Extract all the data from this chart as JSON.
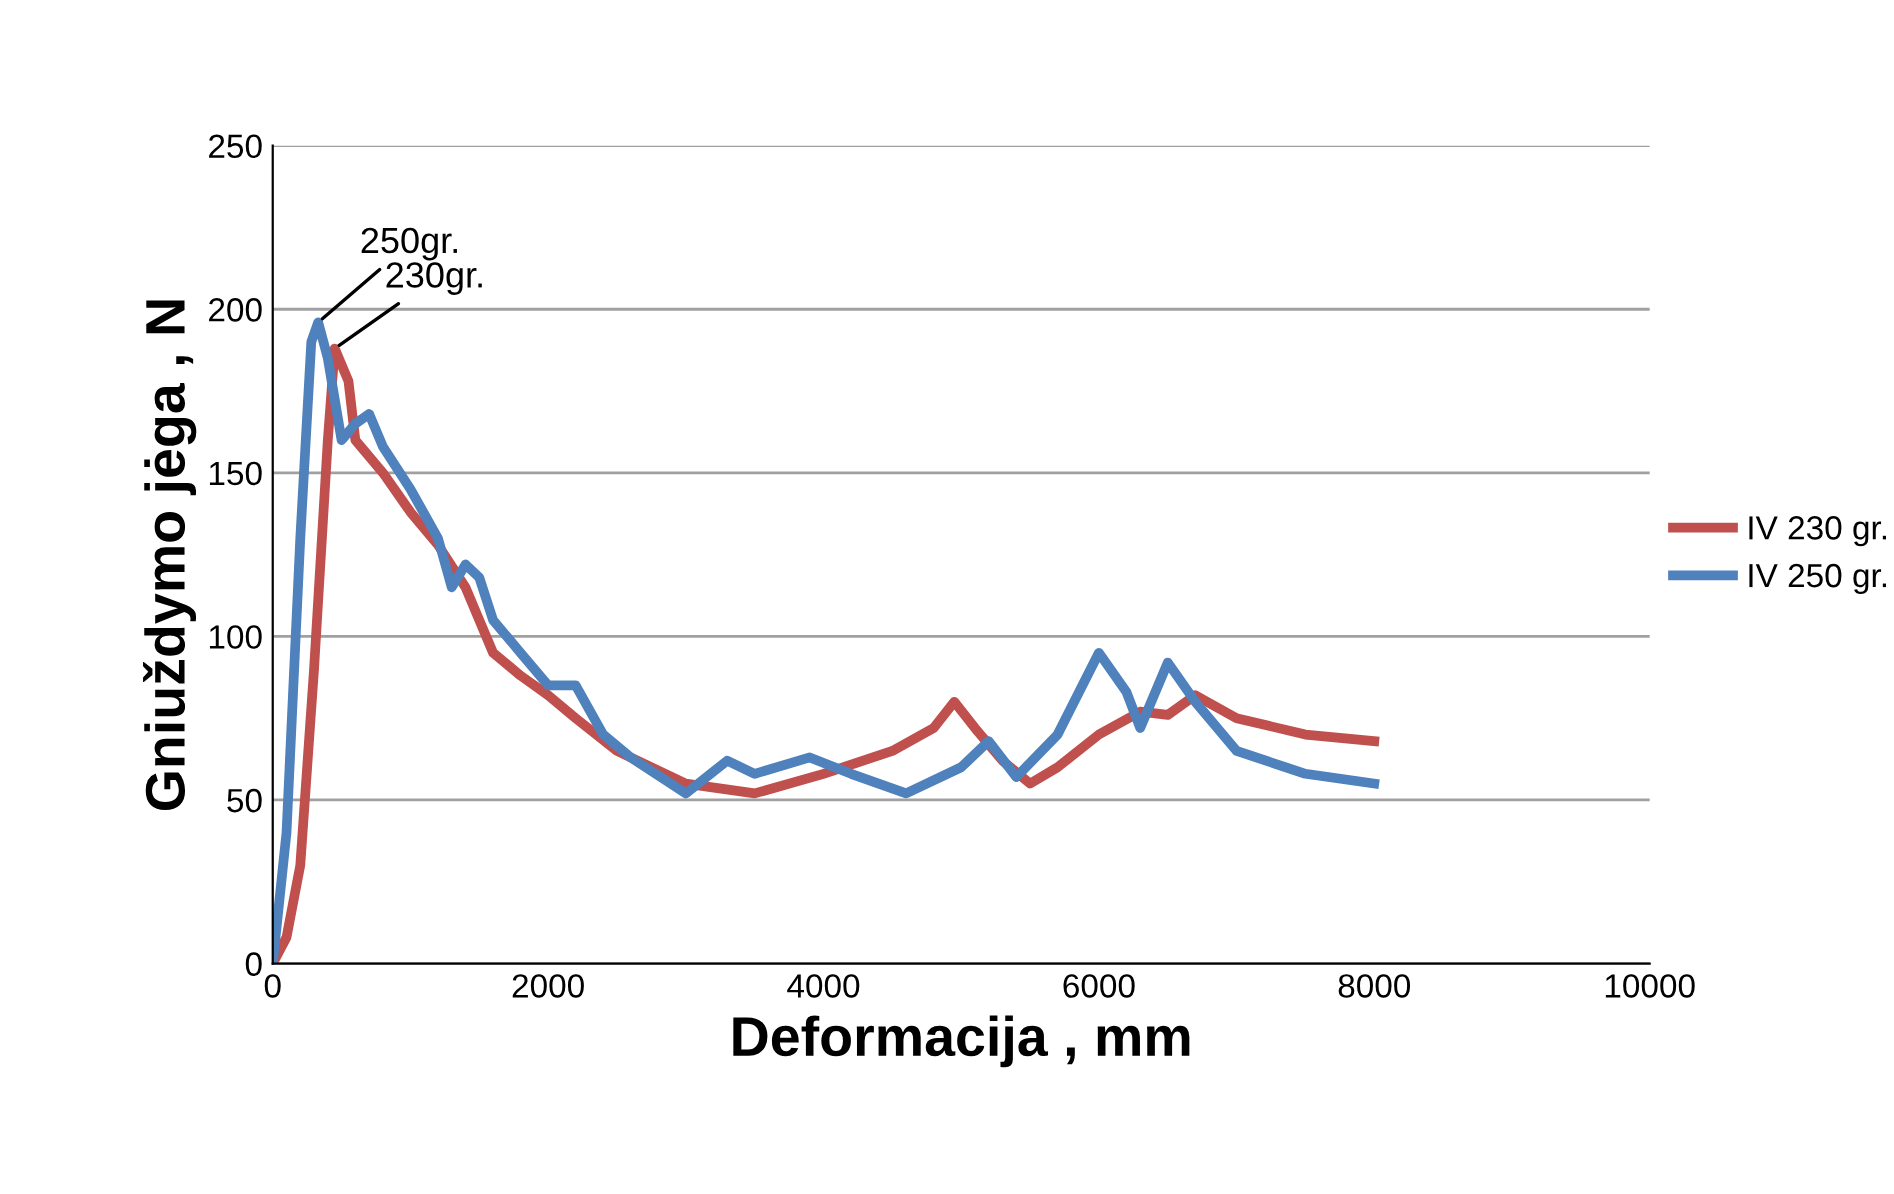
{
  "chart_data": {
    "type": "line",
    "xlabel": "Deformacija , mm",
    "ylabel": "Gniuždymo jėga , N",
    "xlim": [
      0,
      10000
    ],
    "xticks": [
      0,
      2000,
      4000,
      6000,
      8000,
      10000
    ],
    "ylim": [
      0,
      250
    ],
    "yticks": [
      0,
      50,
      100,
      150,
      200,
      250
    ],
    "grid": "y",
    "legend": "right",
    "marker": "none",
    "line_style": "solid",
    "annotations": [
      {
        "text": "250gr.",
        "x": 330,
        "y": 196
      },
      {
        "text": "230gr.",
        "x": 450,
        "y": 188
      }
    ],
    "series": [
      {
        "name": "IV 230 gr.",
        "color": "#c0504d",
        "x": [
          0,
          100,
          200,
          300,
          400,
          450,
          550,
          600,
          800,
          1000,
          1200,
          1400,
          1500,
          1600,
          1800,
          2000,
          2200,
          2500,
          3000,
          3500,
          4000,
          4500,
          4800,
          4950,
          5100,
          5300,
          5500,
          5700,
          6000,
          6300,
          6500,
          6700,
          7000,
          7500,
          8000
        ],
        "values": [
          0,
          8,
          30,
          90,
          160,
          188,
          178,
          160,
          150,
          138,
          128,
          115,
          105,
          95,
          88,
          82,
          75,
          65,
          55,
          52,
          58,
          65,
          72,
          80,
          72,
          62,
          55,
          60,
          70,
          77,
          76,
          82,
          75,
          70,
          68
        ]
      },
      {
        "name": "IV 250 gr.",
        "color": "#4f81bd",
        "x": [
          0,
          100,
          200,
          280,
          330,
          400,
          500,
          600,
          700,
          800,
          1000,
          1200,
          1300,
          1400,
          1500,
          1600,
          1800,
          2000,
          2200,
          2400,
          2600,
          3000,
          3300,
          3500,
          3900,
          4200,
          4600,
          5000,
          5200,
          5400,
          5700,
          6000,
          6200,
          6300,
          6500,
          6700,
          7000,
          7500,
          8000
        ],
        "values": [
          0,
          40,
          130,
          190,
          196,
          185,
          160,
          165,
          168,
          158,
          145,
          130,
          115,
          122,
          118,
          105,
          95,
          85,
          85,
          70,
          63,
          52,
          62,
          58,
          63,
          58,
          52,
          60,
          68,
          57,
          70,
          95,
          83,
          72,
          92,
          80,
          65,
          58,
          55
        ]
      }
    ]
  }
}
